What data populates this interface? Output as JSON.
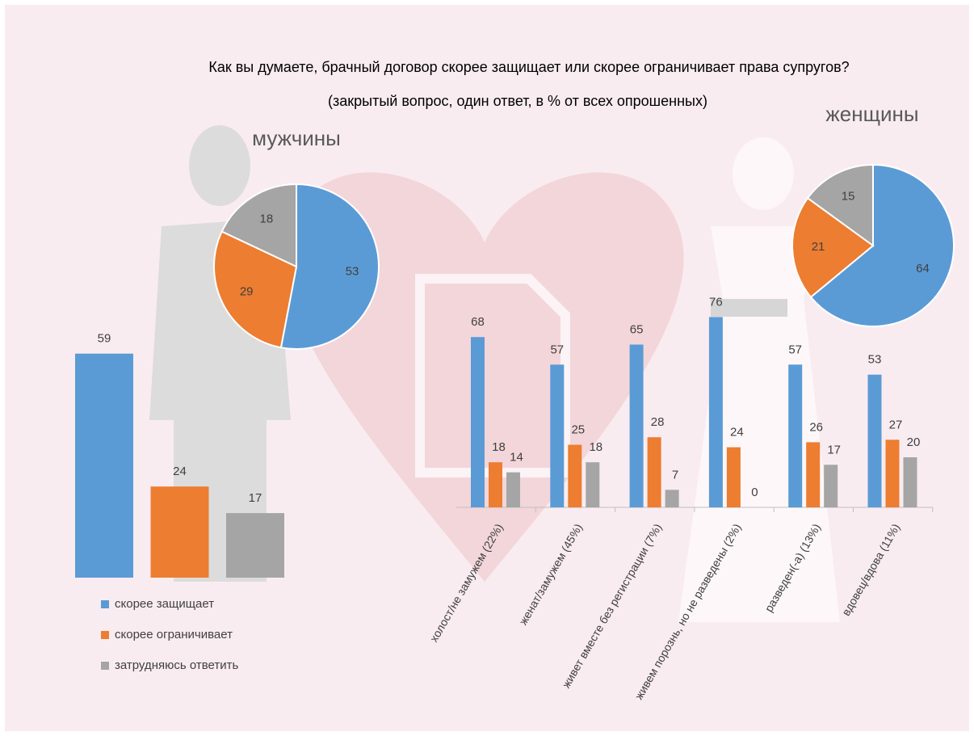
{
  "title": "Как вы думаете, брачный договор скорее защищает или скорее ограничивает права супругов?",
  "subtitle": "(закрытый вопрос, один ответ, в % от всех опрошенных)",
  "chart_data": [
    {
      "type": "pie",
      "title": "мужчины",
      "values": [
        53,
        29,
        18
      ],
      "colors": [
        "#5b9bd5",
        "#ed7d31",
        "#a5a5a5"
      ]
    },
    {
      "type": "pie",
      "title": "женщины",
      "values": [
        64,
        21,
        15
      ],
      "colors": [
        "#5b9bd5",
        "#ed7d31",
        "#a5a5a5"
      ]
    },
    {
      "type": "bar",
      "series": [
        {
          "name": "скорее защищает",
          "color": "#5b9bd5",
          "values": [
            59
          ]
        },
        {
          "name": "скорее ограничивает",
          "color": "#ed7d31",
          "values": [
            24
          ]
        },
        {
          "name": "затрудняюсь ответить",
          "color": "#a5a5a5",
          "values": [
            17
          ]
        }
      ]
    },
    {
      "type": "grouped-bar",
      "categories": [
        "холост/не замужем (22%)",
        "женат/замужем (45%)",
        "живет вместе без регистрации (7%)",
        "живем порознь, но не разведены (2%)",
        "разведен(-а) (13%)",
        "вдовец/вдова (11%)"
      ],
      "series": [
        {
          "color": "#5b9bd5",
          "values": [
            68,
            57,
            65,
            76,
            57,
            53
          ]
        },
        {
          "color": "#ed7d31",
          "values": [
            18,
            25,
            28,
            24,
            26,
            27
          ]
        },
        {
          "color": "#a5a5a5",
          "values": [
            14,
            18,
            7,
            0,
            17,
            20
          ]
        }
      ]
    }
  ]
}
